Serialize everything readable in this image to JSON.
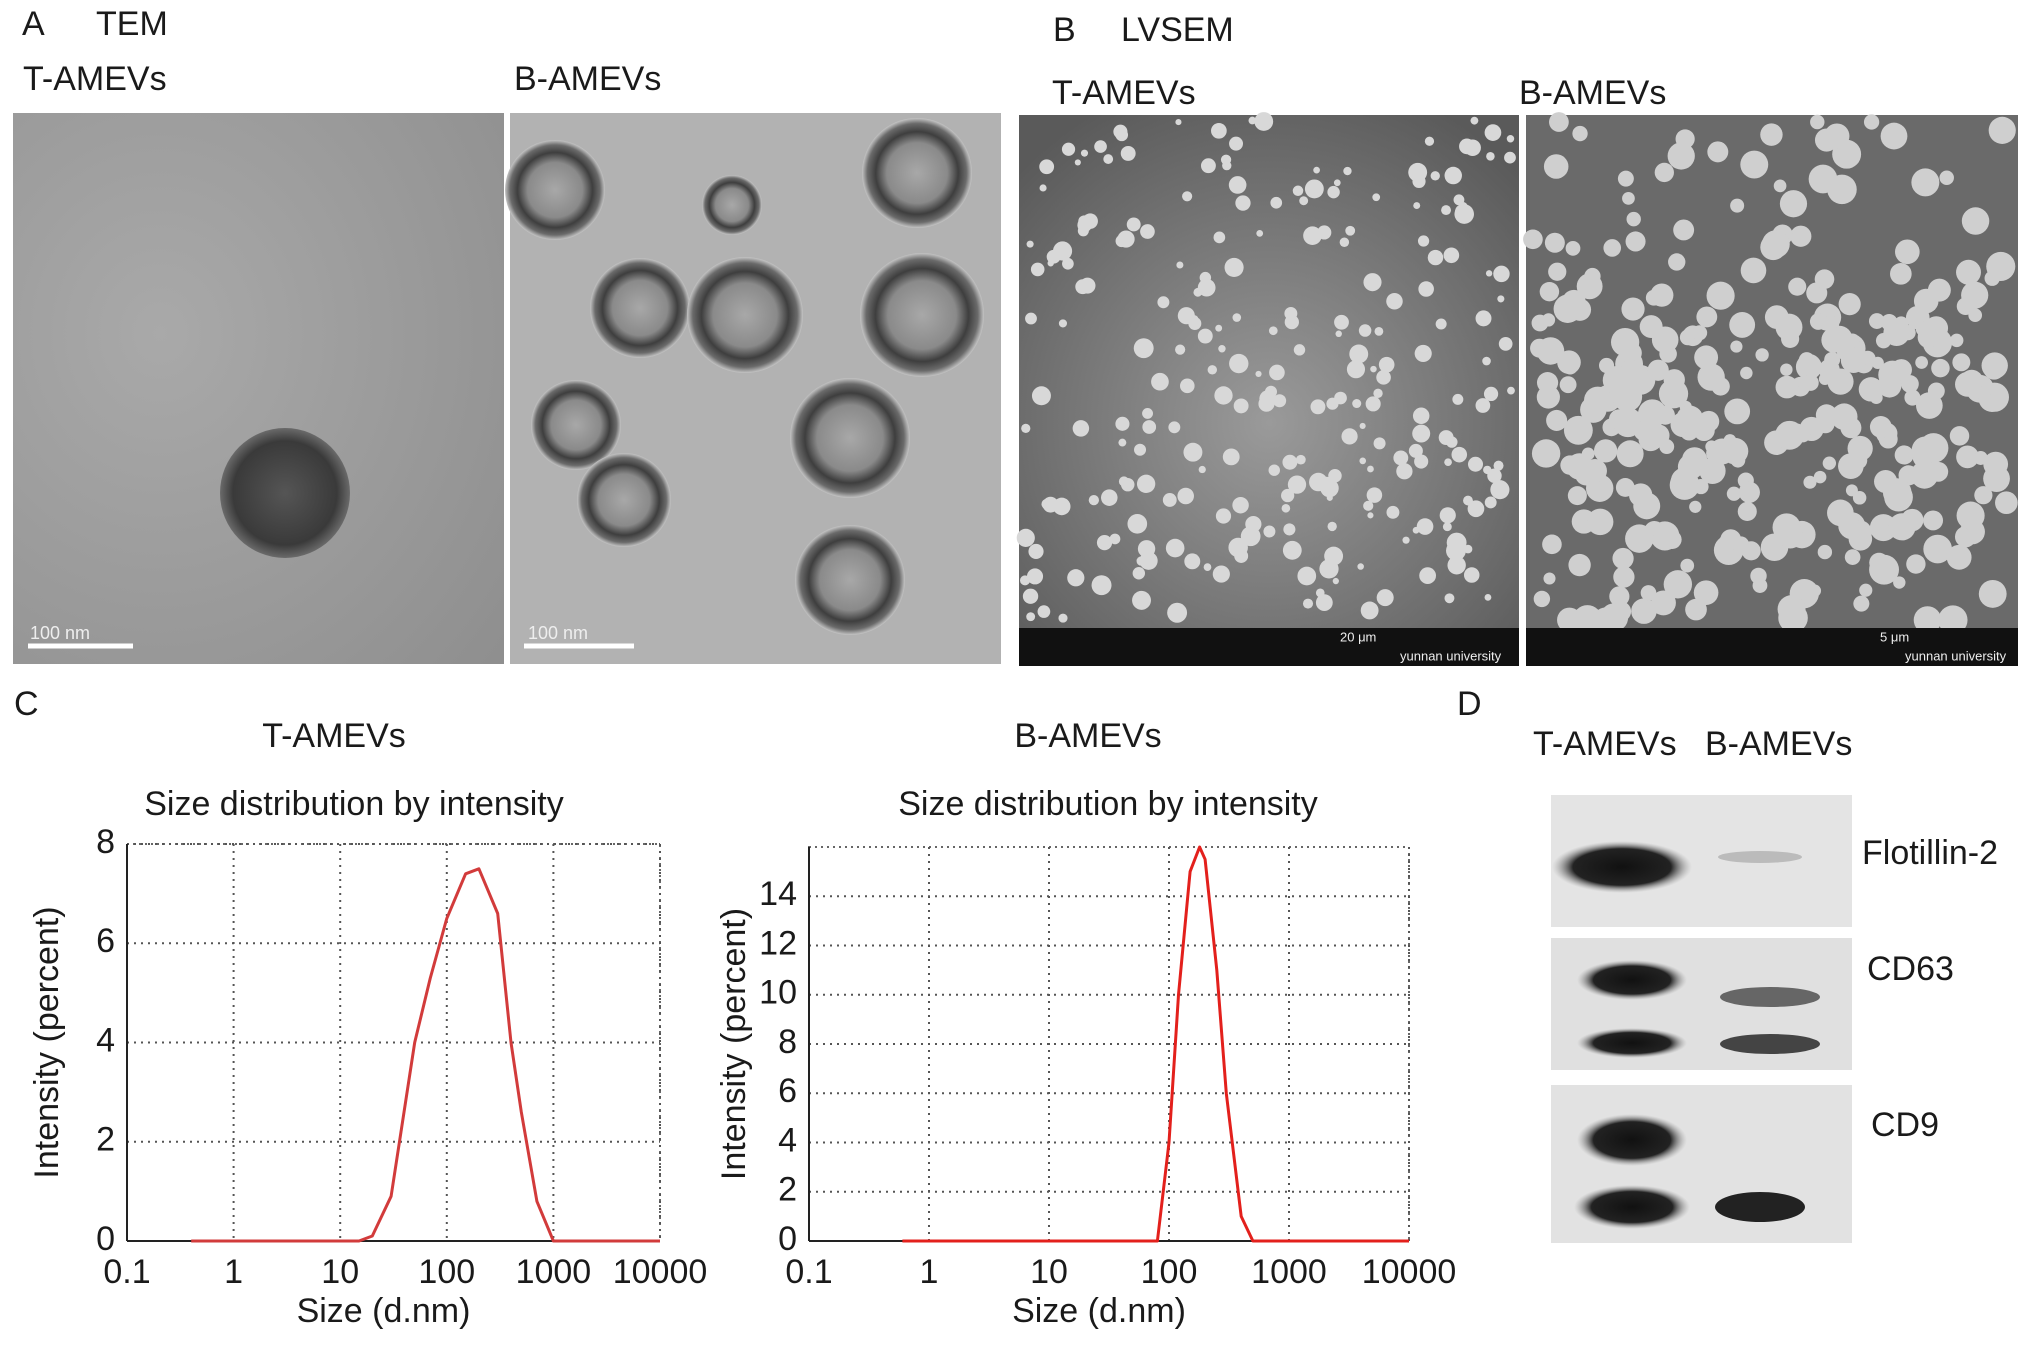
{
  "panels": {
    "a": {
      "letter": "A",
      "title": "TEM",
      "left_label": "T-AMEVs",
      "right_label": "B-AMEVs",
      "left_scale": "100 nm",
      "right_scale": "100 nm"
    },
    "b": {
      "letter": "B",
      "title": "LVSEM",
      "left_label": "T-AMEVs",
      "right_label": "B-AMEVs",
      "left_scale": "20 μm",
      "right_scale": "5 μm",
      "left_footer": "yunnan university",
      "right_footer": "yunnan university"
    },
    "c": {
      "letter": "C"
    },
    "d": {
      "letter": "D",
      "columns": [
        "T-AMEVs",
        "B-AMEVs"
      ],
      "proteins": [
        "Flotillin-2",
        "CD63",
        "CD9"
      ]
    }
  },
  "chart_data": [
    {
      "type": "line",
      "title": "T-AMEVs",
      "subtitle": "Size distribution by intensity",
      "x_label": "Size (d.nm)",
      "y_label": "Intensity (percent)",
      "xscale": "log",
      "grid": true,
      "color": "#d23b3b",
      "x": [
        0.4,
        1,
        5,
        10,
        15,
        20,
        30,
        50,
        70,
        100,
        150,
        200,
        300,
        400,
        500,
        700,
        1000,
        5000,
        10000
      ],
      "values": [
        0,
        0,
        0,
        0,
        0,
        0.1,
        0.9,
        4.0,
        5.3,
        6.5,
        7.4,
        7.5,
        6.6,
        4.0,
        2.6,
        0.8,
        0,
        0,
        0
      ],
      "xlim": [
        0.1,
        10000
      ],
      "xticks": [
        0.1,
        1,
        10,
        100,
        1000,
        10000
      ],
      "ylim": [
        0,
        8
      ],
      "yticks": [
        0,
        2,
        4,
        6,
        8
      ]
    },
    {
      "type": "line",
      "title": "B-AMEVs",
      "subtitle": "Size distribution by intensity",
      "x_label": "Size (d.nm)",
      "y_label": "Intensity (percent)",
      "xscale": "log",
      "grid": true,
      "color": "#e3201c",
      "x": [
        0.6,
        10,
        80,
        100,
        120,
        150,
        180,
        200,
        250,
        300,
        400,
        500,
        1000,
        10000
      ],
      "values": [
        0,
        0,
        0,
        4,
        10,
        15,
        16,
        15.5,
        11,
        6,
        1,
        0,
        0,
        0
      ],
      "xlim": [
        0.1,
        10000
      ],
      "xticks": [
        0.1,
        1,
        10,
        100,
        1000,
        10000
      ],
      "ylim": [
        0,
        16
      ],
      "yticks": [
        0,
        2,
        4,
        6,
        8,
        10,
        12,
        14
      ]
    }
  ]
}
